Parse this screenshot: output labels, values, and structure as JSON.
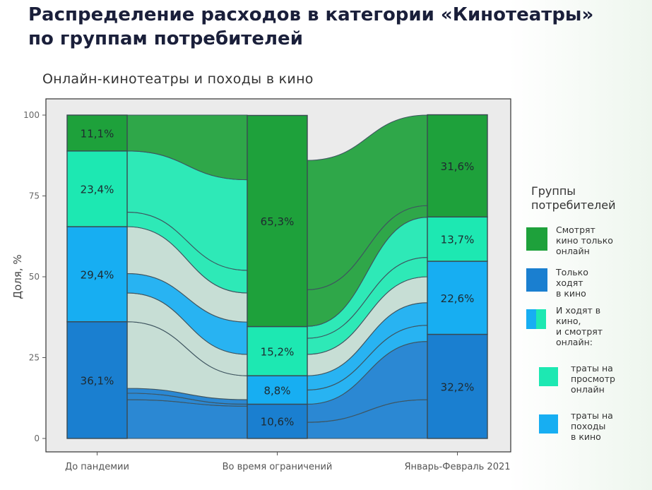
{
  "header": {
    "title_line1": "Распределение расходов в категории «Кинотеатры»",
    "title_line2": "по группам потребителей"
  },
  "colors": {
    "online_only": "#1ea13b",
    "cinema_only": "#1a7fd0",
    "both_online": "#1de8b2",
    "both_cinema": "#17aef2",
    "flow_default": "#c3dcd3",
    "panel_bg": "#ebebeb"
  },
  "chart_data": {
    "type": "sankey",
    "title": "Онлайн-кинотеатры и походы в кино",
    "ylabel": "Доля, %",
    "ylim": [
      0,
      100
    ],
    "yticks": [
      0,
      25,
      50,
      75,
      100
    ],
    "categories": [
      "До пандемии",
      "Во время ограничений",
      "Январь-Февраль 2021"
    ],
    "series": [
      {
        "key": "cinema_only",
        "values": [
          36.1,
          10.6,
          32.2
        ],
        "labels": [
          "36,1%",
          "10,6%",
          "32,2%"
        ]
      },
      {
        "key": "both_cinema",
        "values": [
          29.4,
          8.8,
          22.6
        ],
        "labels": [
          "29,4%",
          "8,8%",
          "22,6%"
        ]
      },
      {
        "key": "both_online",
        "values": [
          23.4,
          15.2,
          13.7
        ],
        "labels": [
          "23,4%",
          "15,2%",
          "13,7%"
        ]
      },
      {
        "key": "online_only",
        "values": [
          11.1,
          65.3,
          31.6
        ],
        "labels": [
          "11,1%",
          "65,3%",
          "31,6%"
        ]
      }
    ],
    "legend": {
      "title": "Группы потребителей",
      "title_lines": [
        "Группы",
        "потребителей"
      ],
      "position": "right",
      "items": [
        {
          "key": "online_only",
          "lines": [
            "Смотрят",
            "кино только",
            "онлайн"
          ]
        },
        {
          "key": "cinema_only",
          "lines": [
            "Только",
            "ходят",
            "в кино"
          ]
        },
        {
          "key": "both",
          "lines": [
            "И ходят в",
            "кино,",
            "и смотрят",
            "онлайн:"
          ]
        },
        {
          "key": "both_online",
          "lines": [
            "траты на",
            "просмотр",
            "онлайн"
          ]
        },
        {
          "key": "both_cinema",
          "lines": [
            "траты на",
            "походы",
            "в кино"
          ]
        }
      ]
    }
  }
}
